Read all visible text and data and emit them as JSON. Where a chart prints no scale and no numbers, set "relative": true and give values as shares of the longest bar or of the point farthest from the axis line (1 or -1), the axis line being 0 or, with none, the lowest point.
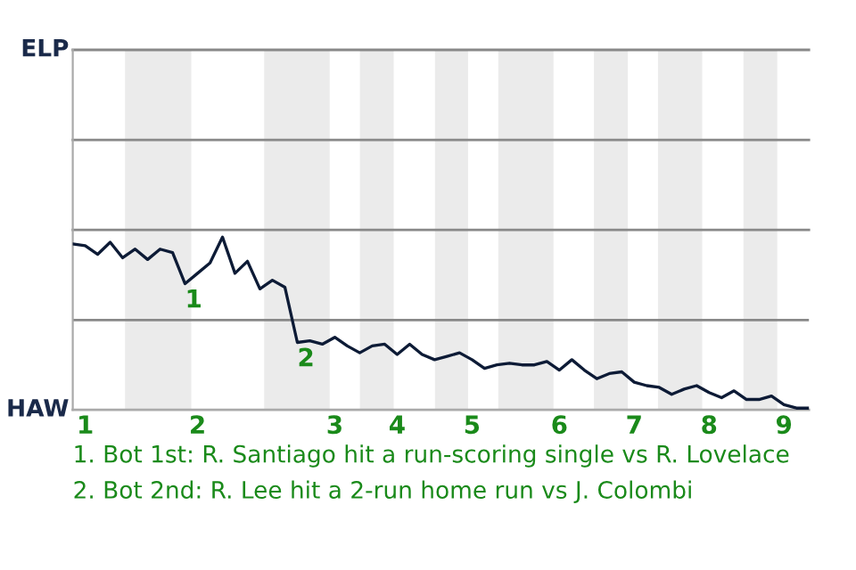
{
  "chart_data": {
    "type": "line",
    "categories": [
      null,
      "1",
      null,
      null,
      null,
      null,
      null,
      null,
      null,
      null,
      "2",
      null,
      null,
      null,
      null,
      null,
      null,
      null,
      null,
      null,
      null,
      "3",
      null,
      null,
      null,
      null,
      "4",
      null,
      null,
      null,
      null,
      null,
      "5",
      null,
      null,
      null,
      null,
      null,
      null,
      "6",
      null,
      null,
      null,
      null,
      null,
      "7",
      null,
      null,
      null,
      null,
      null,
      "8",
      null,
      null,
      null,
      null,
      null,
      "9",
      null,
      null
    ],
    "relative": true,
    "series": [
      {
        "color": "#0d1b36",
        "values": [
          0.96,
          0.95,
          0.9,
          0.97,
          0.88,
          0.93,
          0.87,
          0.93,
          0.91,
          0.73,
          0.79,
          0.85,
          1,
          0.79,
          0.86,
          0.7,
          0.75,
          0.71,
          0.39,
          0.4,
          0.38,
          0.42,
          0.37,
          0.33,
          0.37,
          0.38,
          0.32,
          0.38,
          0.32,
          0.29,
          0.31,
          0.33,
          0.29,
          0.24,
          0.26,
          0.27,
          0.26,
          0.26,
          0.28,
          0.23,
          0.29,
          0.23,
          0.18,
          0.21,
          0.22,
          0.16,
          0.14,
          0.13,
          0.09,
          0.12,
          0.14,
          0.1,
          0.07,
          0.11,
          0.06,
          0.06,
          0.08,
          0.03,
          0.01,
          0.01
        ]
      }
    ],
    "marker": "none",
    "line_style": "solid",
    "ref_lines": [
      {
        "axis": "y",
        "value": 0.52,
        "label": null,
        "color": "#888888"
      }
    ],
    "annotations": [
      "ELP",
      "HAW",
      {
        "text": "1",
        "y": 0.73
      },
      {
        "text": "2",
        "y": 0.39
      },
      "1. Bot 1st: R. Santiago hit a run-scoring single vs R. Lovelace",
      "2. Bot 2nd: R. Lee hit a 2-run home run vs J. Colombi"
    ]
  }
}
